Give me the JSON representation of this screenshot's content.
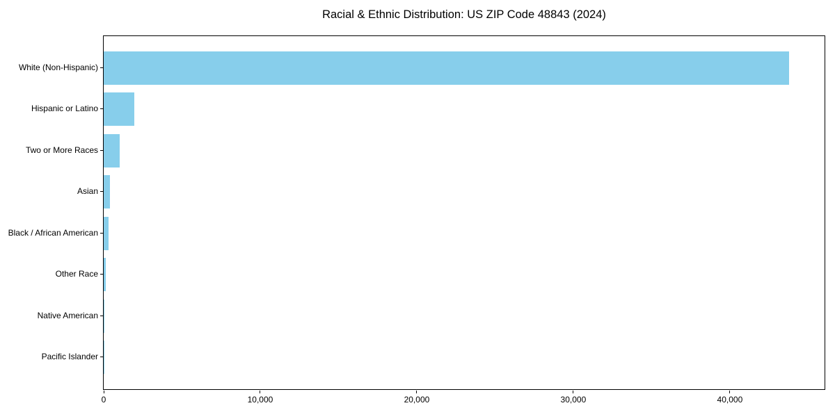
{
  "chart_data": {
    "type": "bar",
    "orientation": "horizontal",
    "title": "Racial & Ethnic Distribution: US ZIP Code 48843 (2024)",
    "categories": [
      "White (Non-Hispanic)",
      "Hispanic or Latino",
      "Two or More Races",
      "Asian",
      "Black / African American",
      "Other Race",
      "Native American",
      "Pacific Islander"
    ],
    "values": [
      43800,
      1950,
      1030,
      420,
      320,
      130,
      40,
      10
    ],
    "xlabel": "",
    "ylabel": "",
    "xlim": [
      0,
      46050
    ],
    "x_ticks": [
      {
        "value": 0,
        "label": "0"
      },
      {
        "value": 10000,
        "label": "10,000"
      },
      {
        "value": 20000,
        "label": "20,000"
      },
      {
        "value": 30000,
        "label": "30,000"
      },
      {
        "value": 40000,
        "label": "40,000"
      }
    ],
    "bar_color": "#87CEEB",
    "frame_color": "#000000",
    "text_color": "#000000",
    "grid": false,
    "legend": false
  }
}
